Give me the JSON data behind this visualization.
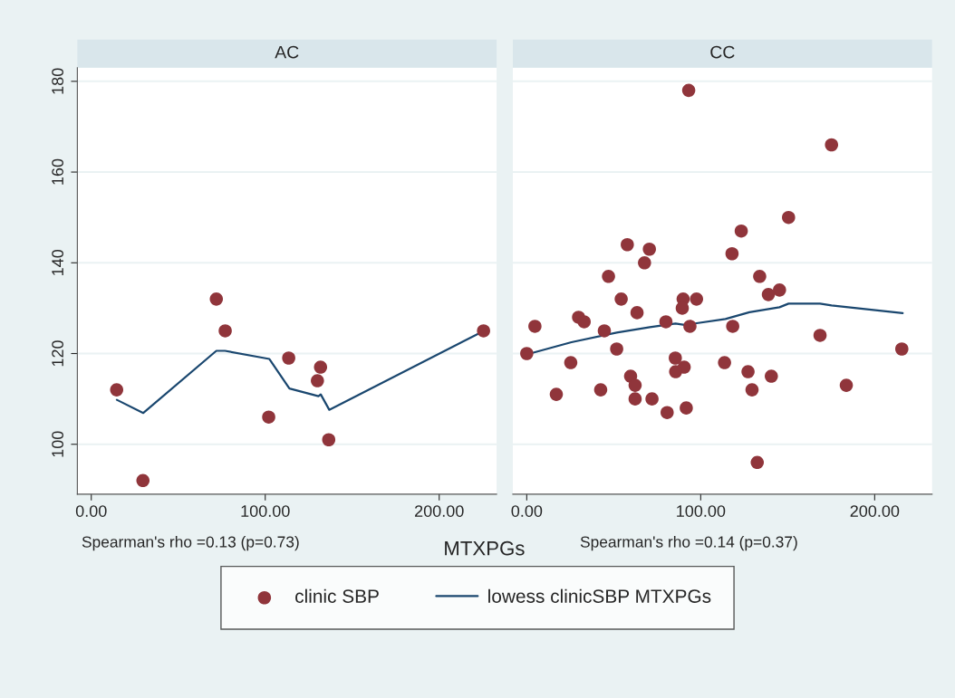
{
  "chart_data": [
    {
      "type": "scatter",
      "title": "AC",
      "xlabel": "MTXPGs",
      "annotations": [
        "Spearman's rho =0.13 (p=0.73)"
      ],
      "xlim": [
        -8,
        233
      ],
      "ylim": [
        89,
        183
      ],
      "xticks": [
        {
          "value": 0,
          "label": "0.00"
        },
        {
          "value": 100,
          "label": "100.00"
        },
        {
          "value": 200,
          "label": "200.00"
        }
      ],
      "yticks": [
        100,
        120,
        140,
        160,
        180
      ],
      "grid": "y",
      "legend": "bottom",
      "series": [
        {
          "name": "clinic SBP",
          "marker": "circle",
          "color": "#90353b",
          "x": [
            14.6,
            29.7,
            71.9,
            77,
            102,
            113.5,
            130,
            131.8,
            136.5,
            225.5
          ],
          "values": [
            112,
            92,
            132,
            125,
            106,
            119,
            114,
            117,
            101,
            125
          ]
        },
        {
          "type": "line",
          "name": "lowess clinicSBP MTXPGs",
          "marker": "none",
          "color": "#1a476f",
          "x": [
            14.7,
            29.9,
            71.9,
            76.9,
            102.4,
            113.9,
            130.6,
            131.9,
            136.8,
            225.7
          ],
          "values": [
            109.8,
            106.9,
            120.6,
            120.6,
            118.8,
            112.3,
            110.6,
            111,
            107.6,
            125
          ]
        }
      ]
    },
    {
      "type": "scatter",
      "title": "CC",
      "annotations": [
        "Spearman's rho =0.14 (p=0.37)"
      ],
      "xlim": [
        -8,
        233
      ],
      "ylim": [
        89,
        183
      ],
      "xticks": [
        {
          "value": 0,
          "label": "0.00"
        },
        {
          "value": 100,
          "label": "100.00"
        },
        {
          "value": 200,
          "label": "200.00"
        }
      ],
      "yticks": [
        100,
        120,
        140,
        160,
        180
      ],
      "grid": "y",
      "tick_labels": "x",
      "series": [
        {
          "marker": "circle",
          "color": "#90353b",
          "x": [
            93.1,
            175.2,
            150.5,
            123.3,
            118,
            57.8,
            70.5,
            67.7,
            47,
            133.9,
            145.3,
            138.9,
            54.3,
            89.9,
            97.6,
            89.4,
            63.4,
            29.8,
            33,
            80,
            4.7,
            93.8,
            118.4,
            44.6,
            168.6,
            51.7,
            215.6,
            0,
            85.4,
            25.3,
            113.7,
            90.5,
            85.6,
            127.2,
            59.7,
            140.6,
            62.3,
            183.7,
            42.5,
            129.5,
            17,
            62.3,
            72,
            91.7,
            80.7,
            132.5
          ],
          "values": [
            178,
            166,
            150,
            147,
            142,
            144,
            143,
            140,
            137,
            137,
            134,
            133,
            132,
            132,
            132,
            130,
            129,
            128,
            127,
            127,
            126,
            126,
            126,
            125,
            124,
            121,
            121,
            120,
            119,
            118,
            118,
            117,
            116,
            116,
            115,
            115,
            113,
            113,
            112,
            112,
            111,
            110,
            110,
            108,
            107,
            96
          ]
        },
        {
          "type": "line",
          "marker": "none",
          "color": "#1a476f",
          "x": [
            0,
            25.7,
            51.7,
            70.8,
            85.5,
            90.7,
            114.2,
            128,
            145.3,
            150.5,
            168.6,
            175.2,
            216.1
          ],
          "values": [
            119.8,
            122.5,
            124.6,
            125.8,
            126.6,
            126.3,
            127.6,
            129.1,
            130.2,
            131,
            131,
            130.6,
            128.9
          ]
        }
      ]
    }
  ]
}
